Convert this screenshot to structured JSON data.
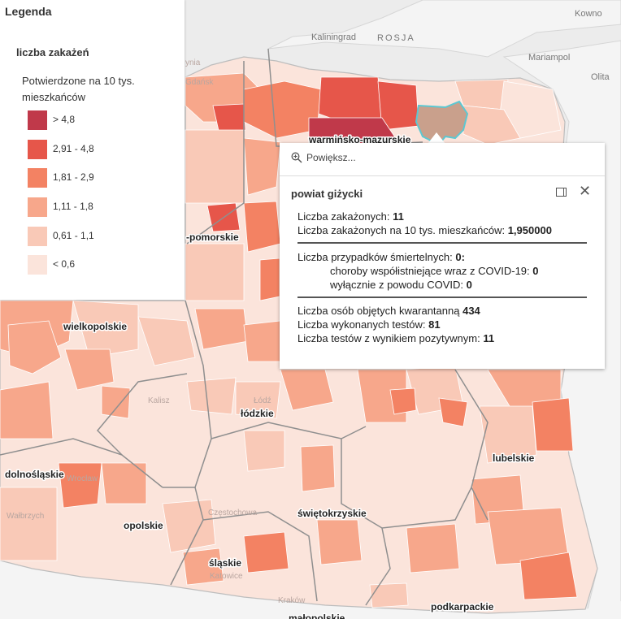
{
  "colors": {
    "class_1": "#fbe4db",
    "class_2": "#f9c9b7",
    "class_3": "#f7a78b",
    "class_4": "#f38263",
    "class_5": "#e6564a",
    "class_6": "#c0394a",
    "selected": "#c9a08c",
    "selected_outline": "#5cc8d2",
    "sea": "#ececec",
    "foreign_land": "#f4f4f4"
  },
  "legend": {
    "title": "Legenda",
    "layer_title": "liczba zakażeń",
    "field_label": "Potwierdzone na 10 tys. mieszkańców",
    "classes": [
      {
        "label": "> 4,8",
        "color": "#c0394a"
      },
      {
        "label": "2,91 - 4,8",
        "color": "#e6564a"
      },
      {
        "label": "1,81 - 2,9",
        "color": "#f38263"
      },
      {
        "label": "1,11 - 1,8",
        "color": "#f7a78b"
      },
      {
        "label": "0,61 - 1,1",
        "color": "#f9c9b7"
      },
      {
        "label": "< 0,6",
        "color": "#fbe4db"
      }
    ]
  },
  "map": {
    "labels": {
      "kaliningrad": "Kaliningrad",
      "rosja": "ROSJA",
      "kowno": "Kowno",
      "mariampol": "Mariampol",
      "olita": "Olita",
      "warminsko": "warmińsko-mazurskie",
      "pomorskie_frag": "-pomorskie",
      "wielkopolskie": "wielkopolskie",
      "lodzkie": "łódzkie",
      "lubelskie": "lubelskie",
      "dolnoslaskie": "dolnośląskie",
      "swietokrzyskie": "świętokrzyskie",
      "opolskie": "opolskie",
      "slaskie": "śląskie",
      "podkarpackie": "podkarpackie",
      "malopolskie": "małopolskie",
      "gdansk": "Gdańsk",
      "gdynia": "ynia",
      "lodz": "Łódź",
      "kalisz": "Kalisz",
      "wroclaw": "Wrocław",
      "walbrzych": "Wałbrzych",
      "czestochowa": "Częstochowa",
      "krakow": "Kraków",
      "katowice": "Katowice"
    }
  },
  "popup": {
    "zoom_label": "Powiększ...",
    "title": "powiat giżycki",
    "cases_label": "Liczba zakażonych:",
    "cases_value": "11",
    "rate_label": "Liczba zakażonych na 10 tys. mieszkańców:",
    "rate_value": "1,950000",
    "deaths_label": "Liczba przypadków śmiertelnych:",
    "deaths_value": "0:",
    "comorb_label": "choroby współistniejące wraz z COVID-19:",
    "comorb_value": "0",
    "covid_only_label": "wyłącznie z powodu COVID:",
    "covid_only_value": "0",
    "quarantine_label": "Liczba osób objętych kwarantanną",
    "quarantine_value": "434",
    "tests_label": "Liczba wykonanych testów:",
    "tests_value": "81",
    "positive_label": "Liczba testów z wynikiem pozytywnym:",
    "positive_value": "11"
  }
}
